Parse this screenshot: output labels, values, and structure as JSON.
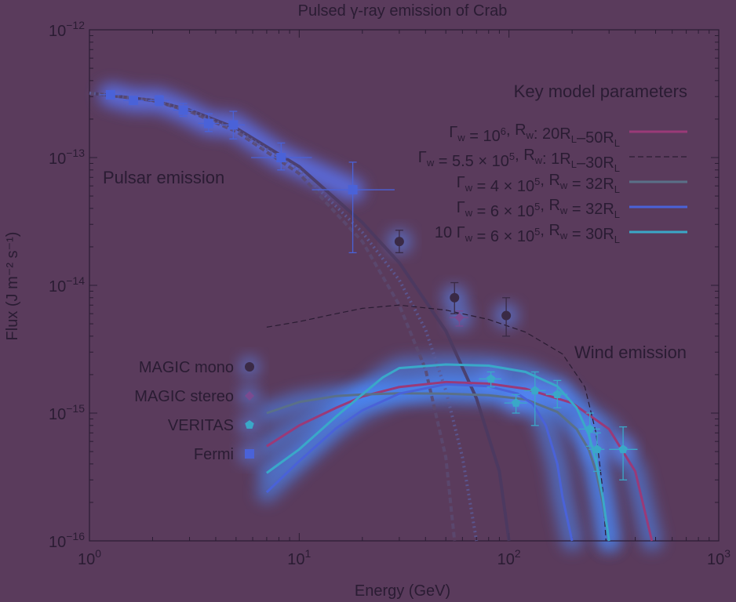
{
  "chart_data": {
    "type": "scatter",
    "title": "Pulsed γ-ray emission of Crab",
    "xlabel": "Energy (GeV)",
    "ylabel": "Flux (J m⁻² s⁻¹)",
    "xscale": "log",
    "yscale": "log",
    "xlim": [
      1,
      1000
    ],
    "ylim": [
      1e-16,
      1e-12
    ],
    "x_ticks": [
      {
        "value": 1,
        "base": "10",
        "exp": "0"
      },
      {
        "value": 10,
        "base": "10",
        "exp": "1"
      },
      {
        "value": 100,
        "base": "10",
        "exp": "2"
      },
      {
        "value": 1000,
        "base": "10",
        "exp": "3"
      }
    ],
    "y_ticks": [
      {
        "value": 1e-16,
        "base": "10",
        "exp": "−16"
      },
      {
        "value": 1e-15,
        "base": "10",
        "exp": "−15"
      },
      {
        "value": 1e-14,
        "base": "10",
        "exp": "−14"
      },
      {
        "value": 1e-13,
        "base": "10",
        "exp": "−13"
      },
      {
        "value": 1e-12,
        "base": "10",
        "exp": "−12"
      }
    ],
    "annotations": {
      "pulsar": "Pulsar emission",
      "wind": "Wind emission",
      "model_header": "Key model parameters"
    },
    "data_series": [
      {
        "name": "MAGIC mono",
        "marker": "circle",
        "color": "#3a2a45",
        "points": [
          {
            "x": 30,
            "y": 2.2e-14,
            "xerr": [
              0,
              0
            ],
            "yerr": [
              1.8e-14,
              2.7e-14
            ]
          },
          {
            "x": 55,
            "y": 8e-15,
            "xerr": [
              0,
              0
            ],
            "yerr": [
              6e-15,
              1.05e-14
            ]
          },
          {
            "x": 97,
            "y": 5.8e-15,
            "xerr": [
              0,
              0
            ],
            "yerr": [
              4e-15,
              8e-15
            ]
          }
        ]
      },
      {
        "name": "MAGIC stereo",
        "marker": "diamond",
        "color": "#7a4a90",
        "points": [
          {
            "x": 58,
            "y": 5.6e-15,
            "xerr": [
              52,
              64
            ],
            "yerr": [
              4.8e-15,
              6.3e-15
            ]
          }
        ]
      },
      {
        "name": "VERITAS",
        "marker": "pentagon",
        "color": "#3aa8c8",
        "points": [
          {
            "x": 82,
            "y": 1.85e-15,
            "xerr": [
              72,
              92
            ],
            "yerr": [
              1.6e-15,
              2.1e-15
            ]
          },
          {
            "x": 108,
            "y": 1.2e-15,
            "xerr": [
              95,
              122
            ],
            "yerr": [
              1e-15,
              1.4e-15
            ]
          },
          {
            "x": 133,
            "y": 1.5e-15,
            "xerr": [
              118,
              150
            ],
            "yerr": [
              8e-16,
              2.1e-15
            ]
          },
          {
            "x": 170,
            "y": 1.4e-15,
            "xerr": [
              150,
              190
            ],
            "yerr": [
              1.1e-15,
              1.8e-15
            ]
          },
          {
            "x": 243,
            "y": 7.5e-16,
            "xerr": [
              215,
              272
            ],
            "yerr": [
              5.5e-16,
              1e-15
            ]
          },
          {
            "x": 263,
            "y": 5.2e-16,
            "xerr": [
              240,
              285
            ],
            "yerr": [
              3.5e-16,
              7e-16
            ]
          },
          {
            "x": 350,
            "y": 5.2e-16,
            "xerr": [
              300,
              410
            ],
            "yerr": [
              3e-16,
              7.8e-16
            ]
          }
        ]
      },
      {
        "name": "Fermi",
        "marker": "square",
        "color": "#4a62d8",
        "points": [
          {
            "x": 1.26,
            "y": 3.1e-13,
            "xerr": [
              1.12,
              1.41
            ],
            "yerr": [
              2.9e-13,
              3.3e-13
            ]
          },
          {
            "x": 1.62,
            "y": 2.8e-13,
            "xerr": [
              1.45,
              1.82
            ],
            "yerr": [
              2.6e-13,
              3e-13
            ]
          },
          {
            "x": 2.15,
            "y": 2.8e-13,
            "xerr": [
              1.9,
              2.4
            ],
            "yerr": [
              2.55e-13,
              3.05e-13
            ]
          },
          {
            "x": 2.8,
            "y": 2.35e-13,
            "xerr": [
              2.5,
              3.15
            ],
            "yerr": [
              2.1e-13,
              2.65e-13
            ]
          },
          {
            "x": 3.7,
            "y": 1.85e-13,
            "xerr": [
              3.3,
              4.15
            ],
            "yerr": [
              1.6e-13,
              2.2e-13
            ]
          },
          {
            "x": 4.85,
            "y": 1.8e-13,
            "xerr": [
              4.3,
              5.5
            ],
            "yerr": [
              1.4e-13,
              2.3e-13
            ]
          },
          {
            "x": 8.2,
            "y": 1e-13,
            "xerr": [
              5.9,
              11.5
            ],
            "yerr": [
              8e-14,
              1.3e-13
            ]
          },
          {
            "x": 18,
            "y": 5.6e-14,
            "xerr": [
              11.5,
              28.5
            ],
            "yerr": [
              1.8e-14,
              9.2e-14
            ]
          }
        ]
      }
    ],
    "model_curves": [
      {
        "label_parts": [
          "Γ",
          "w",
          " = 10",
          "6",
          ", R",
          "w",
          ": 20R",
          "L",
          "–50R",
          "L"
        ],
        "color": "#9a3a78",
        "style": "solid",
        "x": [
          7,
          10,
          15,
          20,
          30,
          50,
          80,
          120,
          200,
          300,
          400,
          480
        ],
        "y": [
          5.5e-16,
          8e-16,
          1.1e-15,
          1.35e-15,
          1.6e-15,
          1.75e-15,
          1.7e-15,
          1.55e-15,
          1.2e-15,
          7.5e-16,
          3.5e-16,
          1e-16
        ]
      },
      {
        "label_parts": [
          "Γ",
          "w",
          " = 5.5 × 10",
          "5",
          ", R",
          "w",
          ": 1R",
          "L",
          "–30R",
          "L"
        ],
        "color": "#2a1c33",
        "style": "dashed",
        "x": [
          7,
          10,
          15,
          20,
          30,
          50,
          80,
          120,
          180,
          230,
          260,
          280,
          290
        ],
        "y": [
          4.7e-15,
          5.2e-15,
          6e-15,
          6.6e-15,
          7e-15,
          6.4e-15,
          5.4e-15,
          4.3e-15,
          2.9e-15,
          1.6e-15,
          7e-16,
          2.5e-16,
          1e-16
        ]
      },
      {
        "label_parts": [
          "Γ",
          "w",
          " = 4 × 10",
          "5",
          ", R",
          "w",
          " = 32R",
          "L"
        ],
        "color": "#5a7088",
        "style": "solid",
        "x": [
          7,
          10,
          15,
          20,
          30,
          50,
          80,
          120,
          170,
          210,
          240,
          260,
          280,
          300
        ],
        "y": [
          1e-15,
          1.22e-15,
          1.36e-15,
          1.4e-15,
          1.43e-15,
          1.42e-15,
          1.38e-15,
          1.28e-15,
          1.02e-15,
          7.5e-16,
          5.2e-16,
          3.5e-16,
          2e-16,
          1e-16
        ]
      },
      {
        "label_parts": [
          "Γ",
          "w",
          " = 6 × 10",
          "5",
          ", R",
          "w",
          " = 32R",
          "L"
        ],
        "color": "#4a62d8",
        "style": "solid",
        "x": [
          7,
          10,
          15,
          20,
          30,
          50,
          80,
          110,
          130,
          150,
          170,
          180,
          200
        ],
        "y": [
          2.4e-16,
          4.2e-16,
          7.6e-16,
          1.05e-15,
          1.42e-15,
          1.68e-15,
          1.62e-15,
          1.42e-15,
          1.18e-15,
          8e-16,
          4e-16,
          2.2e-16,
          1e-16
        ]
      },
      {
        "label_parts": [
          "10 Γ",
          "w",
          " = 6 × 10",
          "5",
          ", R",
          "w",
          " = 30R",
          "L"
        ],
        "color": "#3aa8c8",
        "style": "solid",
        "x": [
          7,
          10,
          15,
          20,
          25,
          30,
          50,
          80,
          120,
          170,
          210,
          240,
          260,
          280,
          300
        ],
        "y": [
          3.4e-16,
          5.2e-16,
          9.4e-16,
          1.4e-15,
          1.9e-15,
          2.25e-15,
          2.4e-15,
          2.35e-15,
          2.1e-15,
          1.62e-15,
          1.1e-15,
          6.8e-16,
          4.2e-16,
          2.2e-16,
          1e-16
        ]
      }
    ],
    "pulsar_model_curves": [
      {
        "color": "#4a3a60",
        "style": "solid",
        "x": [
          1,
          2,
          3,
          5,
          10,
          20,
          30,
          50,
          70,
          90,
          100
        ],
        "y": [
          3.2e-13,
          2.8e-13,
          2.35e-13,
          1.7e-13,
          8.5e-14,
          3.1e-14,
          1.5e-14,
          4.4e-15,
          1.3e-15,
          3.5e-16,
          1e-16
        ]
      },
      {
        "color": "#5a4a70",
        "style": "dashed",
        "x": [
          1,
          2,
          3,
          5,
          10,
          20,
          30,
          40,
          50,
          55
        ],
        "y": [
          3.2e-13,
          2.8e-13,
          2.3e-13,
          1.6e-13,
          7.5e-14,
          2.2e-14,
          7e-15,
          2.2e-15,
          4.5e-16,
          1e-16
        ]
      },
      {
        "color": "#5a5a98",
        "style": "dotted",
        "x": [
          1,
          2,
          3,
          5,
          10,
          20,
          30,
          40,
          50,
          60,
          70
        ],
        "y": [
          3.2e-13,
          2.8e-13,
          2.35e-13,
          1.65e-13,
          8e-14,
          2.6e-14,
          1.1e-14,
          4.5e-15,
          1.5e-15,
          4.5e-16,
          1e-16
        ]
      }
    ]
  }
}
